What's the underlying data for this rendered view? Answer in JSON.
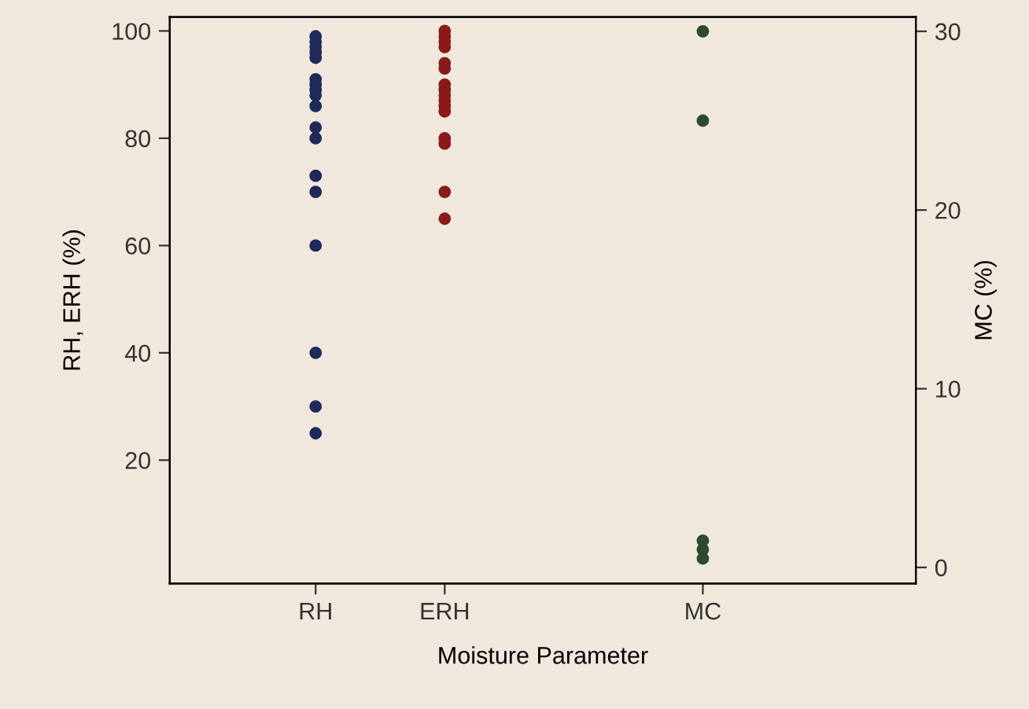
{
  "chart_data": {
    "type": "scatter",
    "xlabel": "Moisture Parameter",
    "ylabel": "RH, ERH (%)",
    "y2label": "MC (%)",
    "categories": [
      "RH",
      "ERH",
      null,
      "MC"
    ],
    "ylim": [
      -3,
      102.6
    ],
    "yticks": [
      20,
      40,
      60,
      80,
      100
    ],
    "y2lim": [
      -0.9,
      30.8
    ],
    "y2ticks": [
      0,
      10,
      20,
      30
    ],
    "grid": false,
    "legend": false,
    "marker": "circle",
    "series": [
      {
        "color": "#1f2a5a",
        "x": [
          "RH",
          "RH",
          "RH",
          "RH",
          "RH",
          "RH",
          "RH",
          "RH",
          "RH",
          "RH",
          "RH",
          "RH",
          "RH",
          "RH",
          "RH",
          "RH",
          "RH",
          "RH"
        ],
        "values": [
          99,
          98,
          97,
          96,
          95,
          91,
          90,
          89,
          88,
          86,
          82,
          80,
          73,
          70,
          60,
          40,
          30,
          25
        ]
      },
      {
        "color": "#8b1a1a",
        "x": [
          "ERH",
          "ERH",
          "ERH",
          "ERH",
          "ERH",
          "ERH",
          "ERH",
          "ERH",
          "ERH",
          "ERH",
          "ERH",
          "ERH",
          "ERH",
          "ERH",
          "ERH",
          "ERH"
        ],
        "values": [
          100,
          99,
          98,
          97,
          94,
          93,
          90,
          89,
          88,
          87,
          86,
          85,
          80,
          79,
          70,
          65
        ]
      },
      {
        "color": "#2d4a2d",
        "axis": "y2",
        "x": [
          "MC",
          "MC",
          "MC",
          "MC",
          "MC"
        ],
        "values": [
          30,
          25,
          1.5,
          1.0,
          0.5
        ]
      }
    ]
  }
}
